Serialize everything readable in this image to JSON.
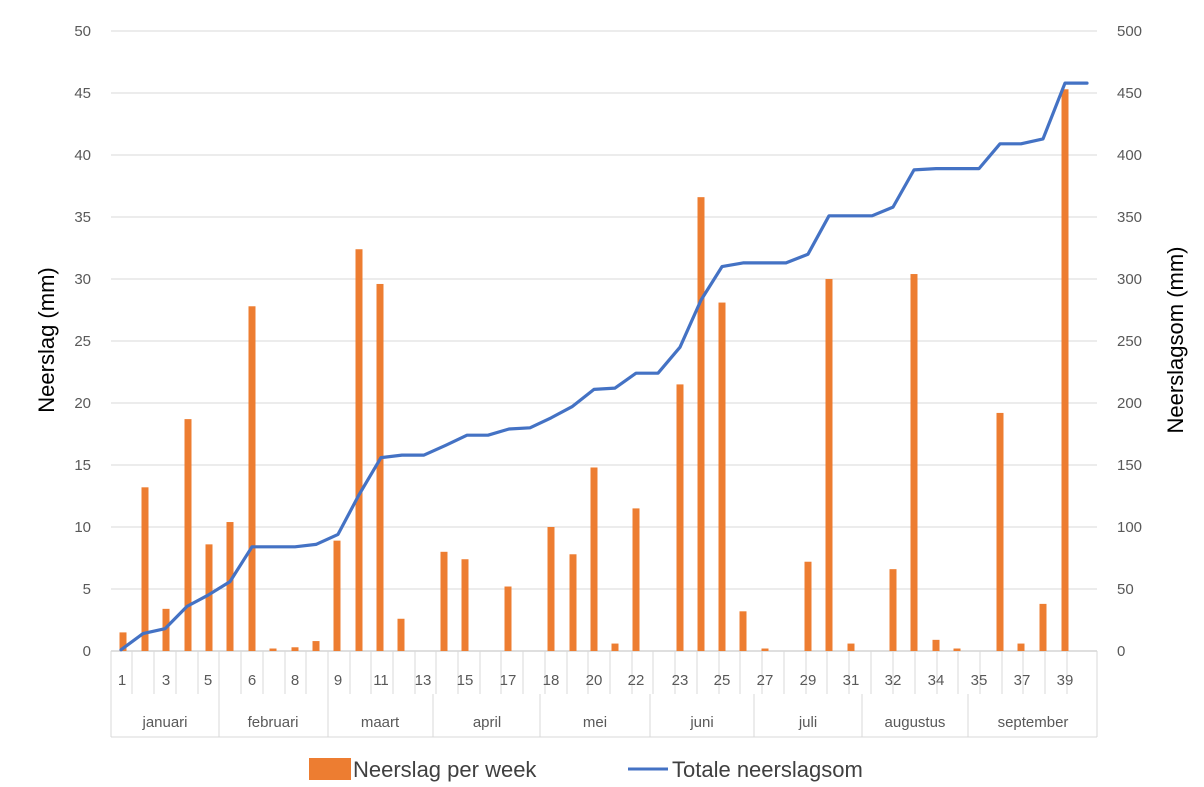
{
  "chart_data": {
    "type": "bar+line",
    "x_label_ticks": [
      "1",
      "3",
      "5",
      "6",
      "8",
      "9",
      "11",
      "13",
      "15",
      "17",
      "18",
      "20",
      "22",
      "23",
      "25",
      "27",
      "29",
      "31",
      "32",
      "34",
      "35",
      "37",
      "39"
    ],
    "months": [
      "januari",
      "februari",
      "maart",
      "april",
      "mei",
      "juni",
      "juli",
      "augustus",
      "september"
    ],
    "ylabel_left": "Neerslag (mm)",
    "ylabel_right": "Neerslagsom (mm)",
    "ylim_left": [
      0,
      50
    ],
    "ylim_right": [
      0,
      500
    ],
    "yticks_left": [
      "0",
      "5",
      "10",
      "15",
      "20",
      "25",
      "30",
      "35",
      "40",
      "45",
      "50"
    ],
    "yticks_right": [
      "0",
      "50",
      "100",
      "150",
      "200",
      "250",
      "300",
      "350",
      "400",
      "450",
      "500"
    ],
    "grid": "horizontal",
    "legend_position": "bottom",
    "series": [
      {
        "name": "Neerslag per week",
        "type": "bar",
        "axis": "left",
        "color": "#ED7D31",
        "values": [
          1.5,
          13.2,
          3.4,
          18.7,
          8.6,
          10.4,
          27.8,
          0.2,
          0.3,
          0.8,
          8.9,
          32.4,
          29.6,
          2.6,
          0,
          8.0,
          7.4,
          0,
          5.2,
          0,
          10.0,
          7.8,
          14.8,
          0.6,
          11.5,
          21.5,
          36.6,
          28.1,
          3.2,
          0.2,
          7.2,
          30.0,
          0.6,
          6.6,
          30.4,
          0.9,
          0.2,
          19.2,
          0.6,
          3.8,
          45.3
        ]
      },
      {
        "name": "Totale neerslagsom",
        "type": "line",
        "axis": "right",
        "color": "#4472C4",
        "values": [
          1,
          14,
          18,
          36,
          45,
          56,
          84,
          84,
          84,
          86,
          94,
          126,
          156,
          158,
          158,
          166,
          174,
          174,
          179,
          180,
          188,
          197,
          211,
          212,
          224,
          224,
          245,
          283,
          310,
          313,
          313,
          313,
          320,
          351,
          351,
          351,
          358,
          388,
          389,
          389,
          389,
          409,
          409,
          413,
          458,
          458
        ]
      }
    ]
  }
}
